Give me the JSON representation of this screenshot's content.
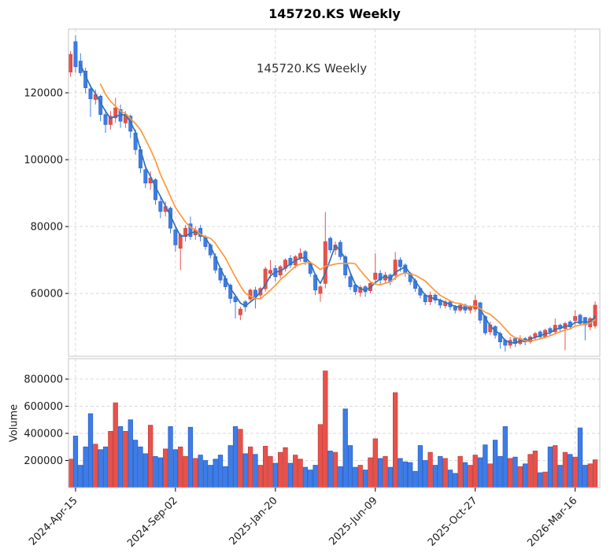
{
  "title": "145720.KS  Weekly",
  "annotation": "145720.KS  Weekly",
  "price_axis": {
    "tick_values": [
      120000,
      100000,
      80000,
      60000
    ]
  },
  "volume_axis": {
    "tick_values": [
      800000,
      600000,
      400000,
      200000
    ],
    "label": "Volume"
  },
  "x_axis": {
    "ticks": [
      {
        "index": 1,
        "label": "2024-Apr-15"
      },
      {
        "index": 21,
        "label": "2024-Sep-02"
      },
      {
        "index": 41,
        "label": "2025-Jan-20"
      },
      {
        "index": 61,
        "label": "2025-Jun-09"
      },
      {
        "index": 81,
        "label": "2025-Oct-27"
      },
      {
        "index": 101,
        "label": "2026-Mar-16"
      }
    ]
  },
  "colors": {
    "up": "#e8524c",
    "up_edge": "#c9403a",
    "down": "#3d7de9",
    "down_edge": "#2d62c4",
    "ma_short": "#3173b5",
    "ma_long": "#ff9838",
    "grid": "#d9d9d9",
    "spine": "#c6c6c6",
    "text": "#1a1a1a"
  },
  "chart_data": {
    "type": "candlestick+volume",
    "title": "145720.KS  Weekly",
    "convention": "red = up week, blue = down week; volume bars share candle color",
    "ma_windows": [
      3,
      7
    ],
    "price_ylim": [
      41200,
      139050
    ],
    "volume_ylim": [
      0,
      950700
    ],
    "ohlcv_columns": [
      "open",
      "high",
      "low",
      "close",
      "volume"
    ],
    "ohlcv": [
      [
        126200,
        132500,
        124800,
        131500,
        210000
      ],
      [
        135300,
        137200,
        126000,
        127800,
        380000
      ],
      [
        129500,
        131800,
        125000,
        126000,
        165000
      ],
      [
        126500,
        127500,
        119800,
        121500,
        300000
      ],
      [
        121200,
        122500,
        112800,
        118200,
        545000
      ],
      [
        118000,
        121000,
        116500,
        119500,
        320000
      ],
      [
        119000,
        119500,
        111500,
        113500,
        280000
      ],
      [
        113500,
        115000,
        108000,
        110500,
        300000
      ],
      [
        110500,
        114500,
        109000,
        113000,
        415000
      ],
      [
        112500,
        118500,
        111000,
        115500,
        625000
      ],
      [
        115000,
        116500,
        109500,
        111500,
        450000
      ],
      [
        111000,
        114500,
        109500,
        113500,
        415000
      ],
      [
        113000,
        113500,
        106500,
        108500,
        500000
      ],
      [
        108000,
        109000,
        101500,
        103000,
        350000
      ],
      [
        103000,
        104000,
        96000,
        97500,
        300000
      ],
      [
        97000,
        98500,
        91500,
        93000,
        250000
      ],
      [
        93000,
        96500,
        91000,
        94500,
        460000
      ],
      [
        94000,
        94500,
        86500,
        88000,
        230000
      ],
      [
        87500,
        89000,
        82500,
        84500,
        220000
      ],
      [
        84500,
        87500,
        83000,
        86000,
        285000
      ],
      [
        85500,
        86000,
        78000,
        79500,
        450000
      ],
      [
        79000,
        80000,
        72500,
        74500,
        280000
      ],
      [
        73500,
        78000,
        67000,
        77500,
        300000
      ],
      [
        77000,
        80500,
        75500,
        79500,
        230000
      ],
      [
        80800,
        83000,
        76000,
        77000,
        445000
      ],
      [
        77500,
        80000,
        76000,
        79000,
        215000
      ],
      [
        79500,
        80500,
        75500,
        77000,
        240000
      ],
      [
        77000,
        77500,
        73000,
        74000,
        200000
      ],
      [
        74500,
        75000,
        70500,
        71500,
        165000
      ],
      [
        71000,
        72000,
        66000,
        67000,
        210000
      ],
      [
        67500,
        68000,
        63000,
        64000,
        240000
      ],
      [
        64500,
        65500,
        61000,
        62000,
        155000
      ],
      [
        62500,
        63000,
        57000,
        58500,
        310000
      ],
      [
        59000,
        59500,
        52500,
        57500,
        450000
      ],
      [
        53600,
        56000,
        52000,
        55300,
        430000
      ],
      [
        57500,
        58000,
        54500,
        56000,
        250000
      ],
      [
        58300,
        61500,
        57500,
        61000,
        300000
      ],
      [
        61000,
        62000,
        55500,
        59000,
        245000
      ],
      [
        59500,
        62000,
        58500,
        61500,
        165000
      ],
      [
        61400,
        68000,
        60500,
        67300,
        305000
      ],
      [
        66000,
        70000,
        64500,
        66900,
        230000
      ],
      [
        67500,
        68500,
        63500,
        65000,
        180000
      ],
      [
        65500,
        68500,
        64500,
        68000,
        260000
      ],
      [
        67500,
        70500,
        66500,
        70000,
        295000
      ],
      [
        70500,
        71500,
        67500,
        68500,
        180000
      ],
      [
        68500,
        71500,
        67500,
        71000,
        240000
      ],
      [
        70500,
        73500,
        69500,
        72000,
        210000
      ],
      [
        72500,
        73000,
        68500,
        69500,
        150000
      ],
      [
        69000,
        69500,
        65000,
        66000,
        130000
      ],
      [
        65500,
        66000,
        59500,
        61000,
        165000
      ],
      [
        60000,
        62500,
        57500,
        62000,
        465000
      ],
      [
        63000,
        84300,
        61500,
        75500,
        860000
      ],
      [
        76500,
        77000,
        72000,
        73000,
        270000
      ],
      [
        73000,
        75500,
        71500,
        74500,
        260000
      ],
      [
        75300,
        76000,
        70000,
        71000,
        155000
      ],
      [
        71000,
        71500,
        64500,
        65500,
        580000
      ],
      [
        65000,
        66000,
        61000,
        62000,
        310000
      ],
      [
        62500,
        63000,
        59500,
        60500,
        150000
      ],
      [
        60300,
        62500,
        59000,
        61800,
        165000
      ],
      [
        62000,
        62500,
        59000,
        60500,
        130000
      ],
      [
        60800,
        63500,
        60000,
        63000,
        220000
      ],
      [
        64200,
        72000,
        63000,
        66100,
        360000
      ],
      [
        66000,
        67000,
        62500,
        64000,
        215000
      ],
      [
        64000,
        66500,
        63000,
        65500,
        230000
      ],
      [
        65500,
        66000,
        62500,
        63500,
        150000
      ],
      [
        65400,
        72400,
        64000,
        70000,
        700000
      ],
      [
        70000,
        70800,
        66500,
        68000,
        215000
      ],
      [
        68500,
        69000,
        65000,
        66000,
        190000
      ],
      [
        66000,
        66500,
        62500,
        63500,
        185000
      ],
      [
        63800,
        64500,
        60500,
        61500,
        120000
      ],
      [
        61500,
        62000,
        58500,
        59500,
        310000
      ],
      [
        59500,
        60000,
        56500,
        57500,
        200000
      ],
      [
        57500,
        60500,
        56500,
        59500,
        260000
      ],
      [
        59500,
        60000,
        57000,
        58000,
        165000
      ],
      [
        58000,
        58500,
        55500,
        56500,
        230000
      ],
      [
        56300,
        58000,
        55500,
        57500,
        215000
      ],
      [
        57500,
        58000,
        55000,
        56000,
        130000
      ],
      [
        56000,
        56500,
        54000,
        55000,
        105000
      ],
      [
        55000,
        57000,
        54500,
        56500,
        230000
      ],
      [
        56500,
        57000,
        54000,
        55000,
        185000
      ],
      [
        55000,
        56500,
        54000,
        56000,
        165000
      ],
      [
        55300,
        59500,
        54500,
        57900,
        240000
      ],
      [
        57200,
        57500,
        51000,
        52000,
        220000
      ],
      [
        53100,
        53500,
        47500,
        48200,
        315000
      ],
      [
        48500,
        51500,
        47500,
        50600,
        175000
      ],
      [
        50100,
        50500,
        46500,
        47500,
        350000
      ],
      [
        48000,
        48500,
        43500,
        45500,
        230000
      ],
      [
        46000,
        46500,
        42600,
        44500,
        450000
      ],
      [
        44500,
        47000,
        43500,
        46000,
        215000
      ],
      [
        46500,
        47000,
        44000,
        45000,
        225000
      ],
      [
        45000,
        47500,
        44500,
        46500,
        155000
      ],
      [
        46500,
        47000,
        44500,
        45500,
        175000
      ],
      [
        45500,
        47500,
        45000,
        47000,
        245000
      ],
      [
        47000,
        48500,
        46000,
        48000,
        270000
      ],
      [
        48500,
        49000,
        46500,
        47000,
        110000
      ],
      [
        47000,
        49500,
        46500,
        49000,
        115000
      ],
      [
        49500,
        50000,
        47500,
        48500,
        300000
      ],
      [
        48500,
        52500,
        48000,
        50500,
        310000
      ],
      [
        50500,
        51000,
        48500,
        49500,
        165000
      ],
      [
        49500,
        51500,
        43000,
        51000,
        260000
      ],
      [
        51500,
        52000,
        49500,
        50000,
        245000
      ],
      [
        51900,
        55000,
        50500,
        53100,
        225000
      ],
      [
        53500,
        54000,
        50500,
        51000,
        440000
      ],
      [
        52800,
        53000,
        46000,
        50600,
        165000
      ],
      [
        50000,
        53000,
        49000,
        52500,
        175000
      ],
      [
        50300,
        57600,
        49500,
        56500,
        205000
      ]
    ]
  }
}
